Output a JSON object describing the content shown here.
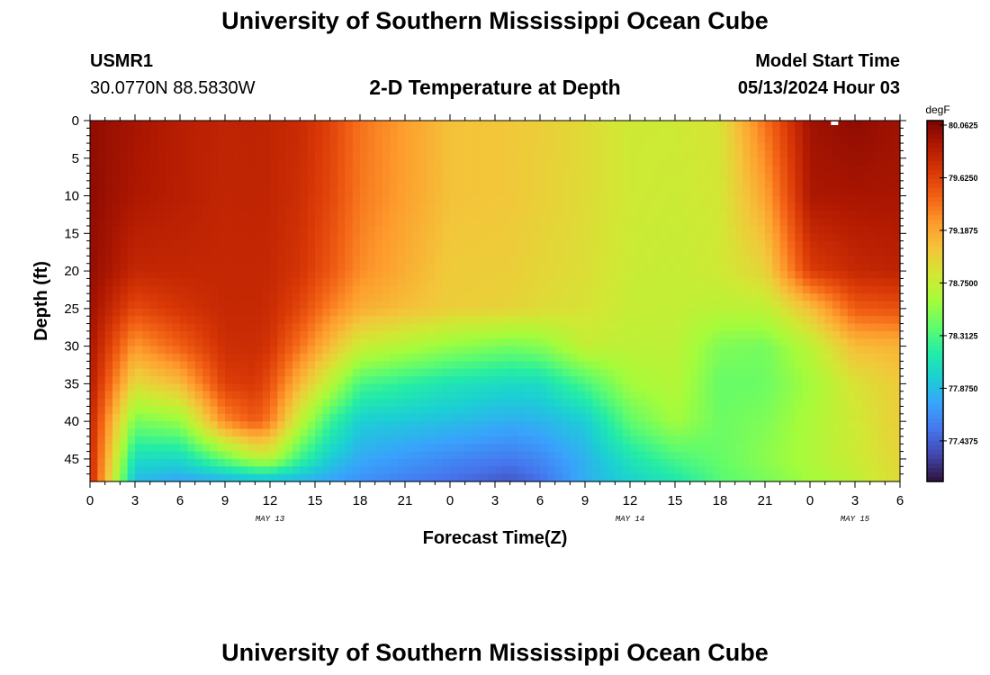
{
  "header": {
    "title": "University of Southern Mississippi Ocean Cube",
    "station_id": "USMR1",
    "coordinates": "30.0770N  88.5830W",
    "subtitle": "2-D Temperature at Depth",
    "model_start_label": "Model Start Time",
    "model_start_value": "05/13/2024 Hour 03"
  },
  "footer": {
    "title": "University of Southern Mississippi Ocean Cube"
  },
  "chart_data": {
    "type": "heatmap",
    "title": "2-D Temperature at Depth",
    "xlabel": "Forecast Time(Z)",
    "ylabel": "Depth (ft)",
    "x_ticks": [
      "0",
      "3",
      "6",
      "9",
      "12",
      "15",
      "18",
      "21",
      "0",
      "3",
      "6",
      "9",
      "12",
      "15",
      "18",
      "21",
      "0",
      "3",
      "6"
    ],
    "x_day_labels": [
      {
        "label": "MAY 13",
        "tick_index": 4
      },
      {
        "label": "MAY 14",
        "tick_index": 12
      },
      {
        "label": "MAY 15",
        "tick_index": 17
      }
    ],
    "y_ticks": [
      "0",
      "5",
      "10",
      "15",
      "20",
      "25",
      "30",
      "35",
      "40",
      "45"
    ],
    "ylim": [
      48,
      0
    ],
    "y_inverted": true,
    "colorbar": {
      "unit": "degF",
      "tick_labels": [
        "80.0625",
        "79.6250",
        "79.1875",
        "78.7500",
        "78.3125",
        "77.8750",
        "77.4375"
      ],
      "tick_values": [
        80.0625,
        79.625,
        79.1875,
        78.75,
        78.3125,
        77.875,
        77.4375
      ],
      "range": [
        77.1,
        80.1
      ],
      "colormap": [
        "#30123b",
        "#4145ab",
        "#4675ed",
        "#39a2fc",
        "#1bcfd4",
        "#24eca6",
        "#61fc6c",
        "#a4fc3b",
        "#d1e834",
        "#f3c63a",
        "#fe9b2d",
        "#f36315",
        "#d93806",
        "#b11901",
        "#7a0403"
      ]
    },
    "time_keys_hours": [
      0,
      3,
      6,
      9,
      11,
      12,
      14,
      16,
      18,
      24,
      28,
      30,
      33,
      36,
      39,
      42,
      45,
      48,
      51,
      54
    ],
    "depth_keys_ft": [
      0,
      10,
      20,
      25,
      30,
      35,
      40,
      45,
      48
    ],
    "temperature_grid_degF": [
      [
        80.01,
        80.02,
        80.0,
        79.96,
        79.92,
        79.88,
        79.81,
        79.8,
        79.8
      ],
      [
        79.93,
        79.9,
        79.79,
        79.58,
        79.25,
        78.9,
        78.45,
        78.05,
        77.85
      ],
      [
        79.85,
        79.85,
        79.79,
        79.7,
        79.48,
        79.08,
        78.55,
        78.02,
        77.75
      ],
      [
        79.81,
        79.8,
        79.79,
        79.78,
        79.74,
        79.64,
        79.31,
        78.4,
        77.8
      ],
      [
        79.82,
        79.81,
        79.79,
        79.78,
        79.75,
        79.68,
        79.5,
        78.65,
        77.84
      ],
      [
        79.8,
        79.8,
        79.78,
        79.76,
        79.7,
        79.56,
        79.36,
        78.68,
        77.83
      ],
      [
        79.76,
        79.74,
        79.7,
        79.6,
        79.4,
        79.1,
        78.72,
        78.25,
        77.82
      ],
      [
        79.62,
        79.6,
        79.52,
        79.35,
        79.08,
        78.7,
        78.25,
        77.95,
        77.75
      ],
      [
        79.4,
        79.38,
        79.3,
        79.15,
        78.78,
        78.3,
        77.96,
        77.78,
        77.66
      ],
      [
        79.05,
        79.05,
        79.0,
        78.98,
        78.55,
        78.1,
        77.88,
        77.62,
        77.5
      ],
      [
        79.02,
        79.02,
        78.98,
        78.95,
        78.45,
        78.03,
        77.8,
        77.55,
        77.4
      ],
      [
        78.98,
        78.97,
        78.93,
        78.9,
        78.5,
        78.04,
        77.83,
        77.62,
        77.5
      ],
      [
        78.9,
        78.9,
        78.88,
        78.85,
        78.75,
        78.3,
        77.95,
        77.82,
        77.8
      ],
      [
        78.8,
        78.8,
        78.78,
        78.76,
        78.72,
        78.6,
        78.38,
        78.1,
        77.98
      ],
      [
        78.8,
        78.78,
        78.76,
        78.75,
        78.72,
        78.68,
        78.6,
        78.3,
        78.12
      ],
      [
        78.85,
        78.82,
        78.8,
        78.7,
        78.48,
        78.4,
        78.42,
        78.4,
        78.35
      ],
      [
        79.4,
        79.2,
        78.95,
        78.72,
        78.45,
        78.42,
        78.48,
        78.52,
        78.45
      ],
      [
        79.95,
        79.9,
        79.65,
        79.05,
        78.7,
        78.6,
        78.64,
        78.65,
        78.6
      ],
      [
        80.02,
        79.92,
        79.78,
        79.5,
        79.08,
        78.85,
        78.8,
        78.78,
        78.72
      ],
      [
        79.95,
        79.92,
        79.82,
        79.55,
        79.12,
        79.0,
        78.98,
        78.94,
        78.9
      ]
    ],
    "grid": false,
    "legend": "colorbar-right"
  }
}
